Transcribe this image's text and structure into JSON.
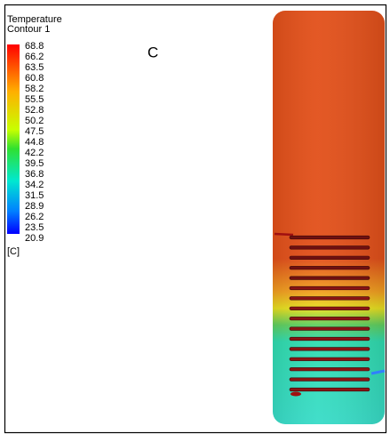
{
  "legend": {
    "title": "Temperature",
    "subtitle": "Contour 1",
    "levels": [
      68.8,
      66.2,
      63.5,
      60.8,
      58.2,
      55.5,
      52.8,
      50.2,
      47.5,
      44.8,
      42.2,
      39.5,
      36.8,
      34.2,
      31.5,
      28.9,
      26.2,
      23.5,
      20.9
    ],
    "unit": "[C]"
  },
  "panel_label": "C"
}
